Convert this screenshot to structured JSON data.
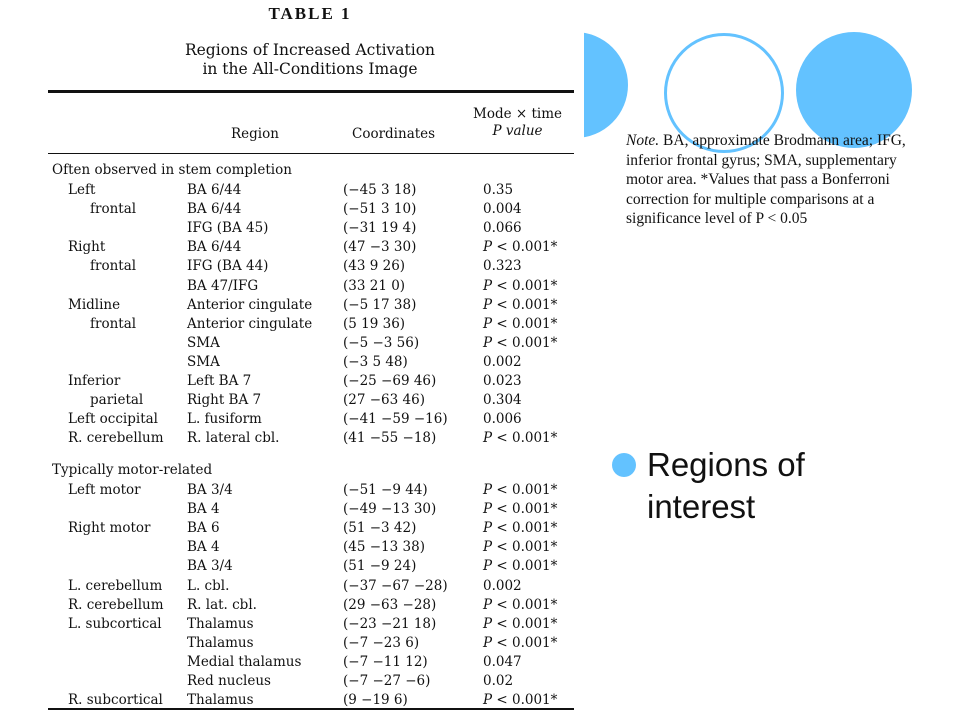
{
  "table": {
    "label": "TABLE 1",
    "caption_line1": "Regions of Increased Activation",
    "caption_line2": "in the All-Conditions Image",
    "headers": {
      "region": "Region",
      "coordinates": "Coordinates",
      "p_line1": "Mode × time",
      "p_line2": "P value"
    },
    "sections": [
      {
        "title": "Often observed in stem completion",
        "rows": [
          {
            "label": "Left",
            "region": "BA 6/44",
            "coord": "(−45 3 18)",
            "p": "0.35"
          },
          {
            "label": "frontal",
            "region": "BA 6/44",
            "coord": "(−51 3 10)",
            "p": "0.004"
          },
          {
            "label": "",
            "region": "IFG (BA 45)",
            "coord": "(−31 19 4)",
            "p": "0.066"
          },
          {
            "label": "Right",
            "region": "BA 6/44",
            "coord": "(47 −3 30)",
            "p": "P < 0.001*"
          },
          {
            "label": "frontal",
            "region": "IFG (BA 44)",
            "coord": "(43 9 26)",
            "p": "0.323"
          },
          {
            "label": "",
            "region": "BA 47/IFG",
            "coord": "(33 21 0)",
            "p": "P < 0.001*"
          },
          {
            "label": "Midline",
            "region": "Anterior cingulate",
            "coord": "(−5 17 38)",
            "p": "P < 0.001*"
          },
          {
            "label": "frontal",
            "region": "Anterior cingulate",
            "coord": "(5 19 36)",
            "p": "P < 0.001*"
          },
          {
            "label": "",
            "region": "SMA",
            "coord": "(−5 −3 56)",
            "p": "P < 0.001*"
          },
          {
            "label": "",
            "region": "SMA",
            "coord": "(−3 5 48)",
            "p": "0.002"
          },
          {
            "label": "Inferior",
            "region": "Left BA 7",
            "coord": "(−25 −69 46)",
            "p": "0.023"
          },
          {
            "label": "parietal",
            "region": "Right BA 7",
            "coord": "(27 −63 46)",
            "p": "0.304"
          },
          {
            "label": "Left occipital",
            "region": "L. fusiform",
            "coord": "(−41 −59 −16)",
            "p": "0.006"
          },
          {
            "label": "R. cerebellum",
            "region": "R. lateral cbl.",
            "coord": "(41 −55 −18)",
            "p": "P < 0.001*"
          }
        ]
      },
      {
        "title": "Typically motor-related",
        "rows": [
          {
            "label": "Left motor",
            "region": "BA 3/4",
            "coord": "(−51 −9 44)",
            "p": "P < 0.001*"
          },
          {
            "label": "",
            "region": "BA 4",
            "coord": "(−49 −13 30)",
            "p": "P < 0.001*"
          },
          {
            "label": "Right motor",
            "region": "BA 6",
            "coord": "(51 −3 42)",
            "p": "P < 0.001*"
          },
          {
            "label": "",
            "region": "BA 4",
            "coord": "(45 −13 38)",
            "p": "P < 0.001*"
          },
          {
            "label": "",
            "region": "BA 3/4",
            "coord": "(51 −9 24)",
            "p": "P < 0.001*"
          },
          {
            "label": "L. cerebellum",
            "region": "L. cbl.",
            "coord": "(−37 −67 −28)",
            "p": "0.002"
          },
          {
            "label": "R. cerebellum",
            "region": "R. lat. cbl.",
            "coord": "(29 −63 −28)",
            "p": "P < 0.001*"
          },
          {
            "label": "L. subcortical",
            "region": "Thalamus",
            "coord": "(−23 −21 18)",
            "p": "P < 0.001*"
          },
          {
            "label": "",
            "region": "Thalamus",
            "coord": "(−7 −23 6)",
            "p": "P < 0.001*"
          },
          {
            "label": "",
            "region": "Medial thalamus",
            "coord": "(−7 −11 12)",
            "p": "0.047"
          },
          {
            "label": "",
            "region": "Red nucleus",
            "coord": "(−7 −27 −6)",
            "p": "0.02"
          },
          {
            "label": "R. subcortical",
            "region": "Thalamus",
            "coord": "(9 −19 6)",
            "p": "P < 0.001*"
          }
        ]
      }
    ]
  },
  "note": {
    "lead": "Note.",
    "text": " BA, approximate Brodmann area; IFG, inferior frontal gyrus; SMA, supplementary motor area. *Values that pass a Bonferroni correction for multiple comparisons at a significance level of P < 0.05"
  },
  "bullet": {
    "text": "Regions of interest"
  },
  "colors": {
    "accent": "#63c2ff"
  }
}
